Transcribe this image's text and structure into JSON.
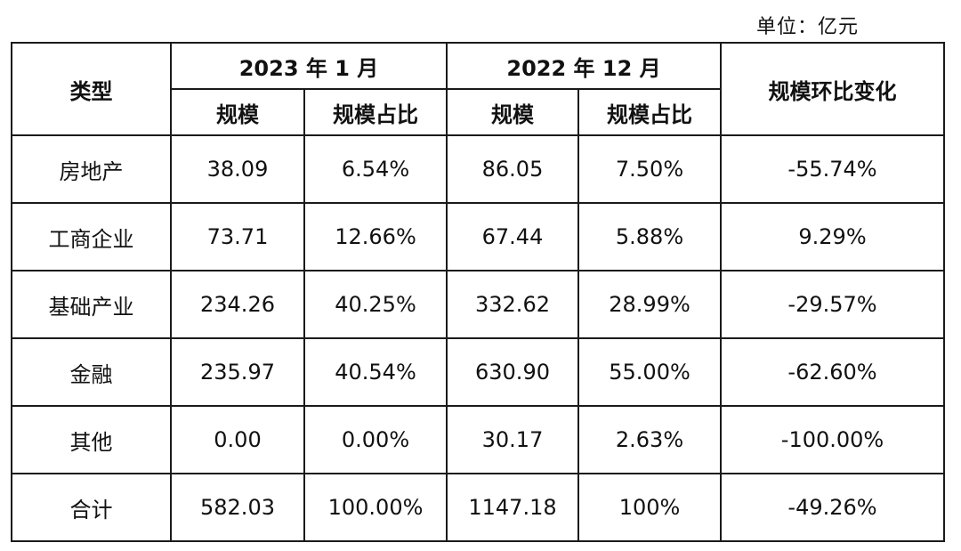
{
  "unit": "单位：亿元",
  "headers": {
    "type": "类型",
    "period1": "2023 年 1 月",
    "period2": "2022 年 12 月",
    "scale": "规模",
    "share": "规模占比",
    "change": "规模环比变化"
  },
  "rows": [
    {
      "type": "房地产",
      "scale1": "38.09",
      "share1": "6.54%",
      "scale2": "86.05",
      "share2": "7.50%",
      "change": "-55.74%"
    },
    {
      "type": "工商企业",
      "scale1": "73.71",
      "share1": "12.66%",
      "scale2": "67.44",
      "share2": "5.88%",
      "change": "9.29%"
    },
    {
      "type": "基础产业",
      "scale1": "234.26",
      "share1": "40.25%",
      "scale2": "332.62",
      "share2": "28.99%",
      "change": "-29.57%"
    },
    {
      "type": "金融",
      "scale1": "235.97",
      "share1": "40.54%",
      "scale2": "630.90",
      "share2": "55.00%",
      "change": "-62.60%"
    },
    {
      "type": "其他",
      "scale1": "0.00",
      "share1": "0.00%",
      "scale2": "30.17",
      "share2": "2.63%",
      "change": "-100.00%"
    },
    {
      "type": "合计",
      "scale1": "582.03",
      "share1": "100.00%",
      "scale2": "1147.18",
      "share2": "100%",
      "change": "-49.26%"
    }
  ]
}
